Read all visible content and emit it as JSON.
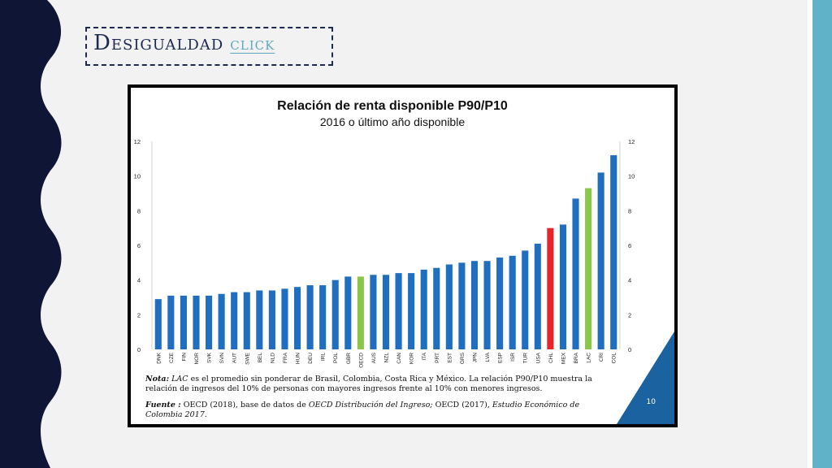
{
  "slide": {
    "title": "Desigualdad",
    "title_link": "click",
    "page_number": "10",
    "note": {
      "label": "Nota:",
      "abbr": "LAC",
      "text": "es el promedio sin ponderar de Brasil, Colombia, Costa Rica y México. La relación P90/P10 muestra la relación de ingresos del 10% de personas con mayores ingresos frente al 10% con menores ingresos."
    },
    "source": {
      "label": "Fuente :",
      "text": "OECD (2018), base de datos de",
      "italic1": "OECD Distribución del Ingreso;",
      "text2": "OECD (2017),",
      "italic2": "Estudio Económico de Colombia 2017",
      "end": "."
    }
  },
  "colors": {
    "default_bar": "#1f6ebf",
    "highlight_red": "#e8242a",
    "highlight_green": "#8cc54b",
    "navy": "#0f1535",
    "accent_teal": "#5fb2c8",
    "corner_blue": "#1a62a0"
  },
  "chart_data": {
    "type": "bar",
    "title": "Relación de renta disponible P90/P10",
    "subtitle": "2016 o último año disponible",
    "categories": [
      "DNK",
      "CZE",
      "FIN",
      "NOR",
      "SVK",
      "SVN",
      "AUT",
      "SWE",
      "BEL",
      "NLD",
      "FRA",
      "HUN",
      "DEU",
      "IRL",
      "POL",
      "GBR",
      "OECD",
      "AUS",
      "NZL",
      "CAN",
      "KOR",
      "ITA",
      "PRT",
      "EST",
      "GRS",
      "JPN",
      "LVA",
      "ESP",
      "ISR",
      "TUR",
      "USA",
      "CHL",
      "MEX",
      "BRA",
      "LAC",
      "CRI",
      "COL"
    ],
    "values": [
      2.9,
      3.1,
      3.1,
      3.1,
      3.1,
      3.2,
      3.3,
      3.3,
      3.4,
      3.4,
      3.5,
      3.6,
      3.7,
      3.7,
      4.0,
      4.2,
      4.2,
      4.3,
      4.3,
      4.4,
      4.4,
      4.6,
      4.7,
      4.9,
      5.0,
      5.1,
      5.1,
      5.3,
      5.4,
      5.7,
      6.1,
      7.0,
      7.2,
      8.7,
      9.3,
      10.2,
      11.2
    ],
    "highlight": {
      "CHL": "red",
      "OECD": "green",
      "LAC": "green"
    },
    "ylim": [
      0,
      12
    ],
    "yticks": [
      0,
      2,
      4,
      6,
      8,
      10,
      12
    ],
    "grid": false,
    "legend": "none",
    "dual_y_axis": true
  }
}
